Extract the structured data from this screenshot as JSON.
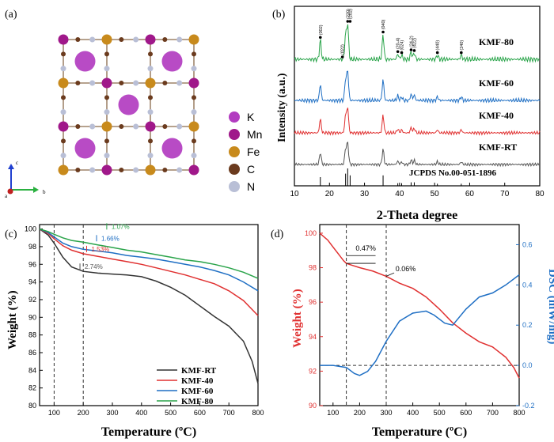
{
  "panels": {
    "a": {
      "label": "(a)",
      "legend": [
        {
          "symbol": "K",
          "color": "#b23cc0"
        },
        {
          "symbol": "Mn",
          "color": "#a0188a"
        },
        {
          "symbol": "Fe",
          "color": "#c88a1c"
        },
        {
          "symbol": "C",
          "color": "#6b3b1e"
        },
        {
          "symbol": "N",
          "color": "#b9bfd6"
        }
      ],
      "axes": {
        "c": "c",
        "a": "a",
        "b": "b"
      }
    },
    "b": {
      "label": "(b)"
    },
    "c": {
      "label": "(c)"
    },
    "d": {
      "label": "(d)"
    }
  },
  "chart_data": [
    {
      "panel": "b",
      "type": "line",
      "xlabel": "2-Theta degree",
      "ylabel": "Intensity (a.u.)",
      "xlim": [
        10,
        80
      ],
      "xticks": [
        10,
        20,
        30,
        40,
        50,
        60,
        70,
        80
      ],
      "series": [
        {
          "name": "KMF-80",
          "color": "#2aa44a"
        },
        {
          "name": "KMF-60",
          "color": "#1f6fc4"
        },
        {
          "name": "KMF-40",
          "color": "#e03030"
        },
        {
          "name": "KMF-RT",
          "color": "#555555"
        }
      ],
      "peaks": [
        17.4,
        24.6,
        25.2,
        35.3,
        39.5,
        40.6,
        43.3,
        44.2,
        50.8,
        57.6
      ],
      "peak_heights": [
        0.55,
        0.7,
        1.0,
        0.7,
        0.15,
        0.12,
        0.2,
        0.18,
        0.12,
        0.12
      ],
      "peak_labels": [
        {
          "x": 17.4,
          "text": "(002)"
        },
        {
          "x": 23.7,
          "text": "(022)"
        },
        {
          "x": 25.2,
          "text": "(220)"
        },
        {
          "x": 25.9,
          "text": "(202)"
        },
        {
          "x": 35.3,
          "text": "(040)"
        },
        {
          "x": 39.5,
          "text": "(20-4)"
        },
        {
          "x": 40.6,
          "text": "(024)"
        },
        {
          "x": 43.3,
          "text": "(24-2)"
        },
        {
          "x": 44.2,
          "text": "(422)"
        },
        {
          "x": 50.8,
          "text": "(440)"
        },
        {
          "x": 57.6,
          "text": "(240)"
        }
      ],
      "reference": {
        "name": "JCPDS No.00-051-1896",
        "sticks": [
          {
            "x": 17.4,
            "h": 0.5
          },
          {
            "x": 24.6,
            "h": 0.7
          },
          {
            "x": 25.2,
            "h": 1.0
          },
          {
            "x": 25.9,
            "h": 0.6
          },
          {
            "x": 35.3,
            "h": 0.6
          },
          {
            "x": 39.5,
            "h": 0.15
          },
          {
            "x": 40.6,
            "h": 0.15
          },
          {
            "x": 43.3,
            "h": 0.2
          },
          {
            "x": 44.2,
            "h": 0.2
          },
          {
            "x": 50.8,
            "h": 0.12
          },
          {
            "x": 57.6,
            "h": 0.12
          }
        ]
      }
    },
    {
      "panel": "c",
      "type": "line",
      "xlabel": "Temperature (ºC)",
      "ylabel": "Weight (%)",
      "xlim": [
        50,
        800
      ],
      "ylim": [
        80,
        100.5
      ],
      "xticks": [
        100,
        200,
        300,
        400,
        500,
        600,
        700,
        800
      ],
      "yticks": [
        80,
        82,
        84,
        86,
        88,
        90,
        92,
        94,
        96,
        98,
        100
      ],
      "vlines": [
        100,
        200
      ],
      "annotations": [
        {
          "text": "2.74%",
          "color": "#555555"
        },
        {
          "text": "1.53%",
          "color": "#e03030"
        },
        {
          "text": "1.66%",
          "color": "#1f6fc4"
        },
        {
          "text": "1.07%",
          "color": "#2aa44a"
        }
      ],
      "series": [
        {
          "name": "KMF-RT",
          "color": "#333333",
          "x": [
            50,
            80,
            100,
            130,
            160,
            200,
            250,
            300,
            350,
            400,
            450,
            500,
            550,
            600,
            650,
            700,
            750,
            780,
            800
          ],
          "y": [
            100,
            99.3,
            98.4,
            96.8,
            95.7,
            95.2,
            95.0,
            94.9,
            94.8,
            94.6,
            94.1,
            93.4,
            92.5,
            91.3,
            90.1,
            89.0,
            87.3,
            85.0,
            82.5
          ]
        },
        {
          "name": "KMF-40",
          "color": "#e03030",
          "x": [
            50,
            80,
            100,
            130,
            160,
            200,
            250,
            300,
            350,
            400,
            450,
            500,
            550,
            600,
            650,
            700,
            750,
            800
          ],
          "y": [
            100,
            99.5,
            98.9,
            98.1,
            97.6,
            97.2,
            96.9,
            96.6,
            96.3,
            96.0,
            95.6,
            95.2,
            94.8,
            94.3,
            93.8,
            93.0,
            91.9,
            90.2
          ]
        },
        {
          "name": "KMF-60",
          "color": "#1f6fc4",
          "x": [
            50,
            80,
            100,
            130,
            160,
            200,
            250,
            300,
            350,
            400,
            450,
            500,
            550,
            600,
            650,
            700,
            750,
            800
          ],
          "y": [
            100,
            99.6,
            99.1,
            98.4,
            98.0,
            97.7,
            97.5,
            97.3,
            97.0,
            96.8,
            96.6,
            96.3,
            96.0,
            95.7,
            95.3,
            94.8,
            94.0,
            93.0
          ]
        },
        {
          "name": "KMF-80",
          "color": "#2aa44a",
          "x": [
            50,
            80,
            100,
            130,
            160,
            200,
            250,
            300,
            350,
            400,
            450,
            500,
            550,
            600,
            650,
            700,
            750,
            800
          ],
          "y": [
            100,
            99.7,
            99.4,
            99.0,
            98.7,
            98.5,
            98.2,
            97.9,
            97.6,
            97.4,
            97.1,
            96.8,
            96.5,
            96.3,
            96.0,
            95.6,
            95.1,
            94.4
          ]
        }
      ],
      "legend": "bottom-right"
    },
    {
      "panel": "d",
      "type": "line",
      "xlabel": "Temperature (ºC)",
      "ylabel_left": "Weight (%)",
      "ylabel_right": "DSC (mW/mg)",
      "xlim": [
        50,
        800
      ],
      "ylim_left": [
        90,
        100.5
      ],
      "ylim_right": [
        -0.2,
        0.7
      ],
      "xticks": [
        100,
        200,
        300,
        400,
        500,
        600,
        700,
        800
      ],
      "yticks_left": [
        90,
        92,
        94,
        96,
        98,
        100
      ],
      "yticks_right": [
        -0.2,
        0.0,
        0.2,
        0.4,
        0.6
      ],
      "vlines": [
        150,
        300
      ],
      "hline_right": 0.0,
      "annotations": [
        {
          "text": "0.47%"
        },
        {
          "text": "0.06%"
        }
      ],
      "series": [
        {
          "name": "Weight",
          "axis": "left",
          "color": "#e03030",
          "x": [
            50,
            80,
            100,
            120,
            140,
            150,
            170,
            200,
            250,
            300,
            350,
            400,
            450,
            500,
            550,
            600,
            650,
            700,
            750,
            780,
            800
          ],
          "y": [
            100,
            99.6,
            99.2,
            98.8,
            98.4,
            98.25,
            98.15,
            98.0,
            97.8,
            97.5,
            97.1,
            96.8,
            96.3,
            95.6,
            94.8,
            94.2,
            93.7,
            93.4,
            92.8,
            92.2,
            91.6
          ]
        },
        {
          "name": "DSC",
          "axis": "right",
          "color": "#1f6fc4",
          "x": [
            50,
            100,
            150,
            180,
            200,
            230,
            260,
            300,
            350,
            400,
            450,
            480,
            520,
            550,
            600,
            650,
            700,
            750,
            800
          ],
          "y": [
            0.0,
            0.0,
            -0.01,
            -0.04,
            -0.05,
            -0.03,
            0.02,
            0.12,
            0.22,
            0.26,
            0.27,
            0.25,
            0.21,
            0.2,
            0.28,
            0.34,
            0.36,
            0.4,
            0.45
          ]
        }
      ]
    }
  ]
}
